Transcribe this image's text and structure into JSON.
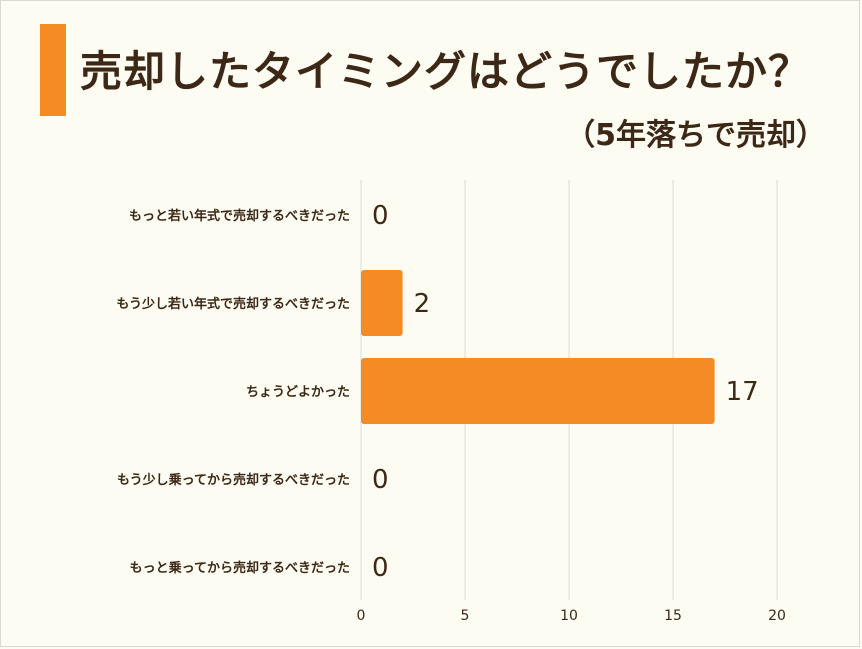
{
  "title": "売却したタイミングはどうでしたか？",
  "subtitle": "（5年落ちで売却）",
  "colors": {
    "bar": "#f58b25",
    "text": "#3d2817",
    "grid": "#d9d9d9",
    "background": "#fcfcf2"
  },
  "chart_data": {
    "type": "bar",
    "orientation": "horizontal",
    "categories": [
      "もっと若い年式で売却するべきだった",
      "もう少し若い年式で売却するべきだった",
      "ちょうどよかった",
      "もう少し乗ってから売却するべきだった",
      "もっと乗ってから売却するべきだった"
    ],
    "values": [
      0,
      2,
      17,
      0,
      0
    ],
    "xlim": [
      0,
      20
    ],
    "xticks": [
      0,
      5,
      10,
      15,
      20
    ],
    "grid": true,
    "data_labels": true
  }
}
